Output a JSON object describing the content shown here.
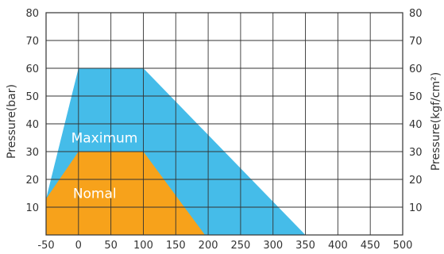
{
  "chart_data": {
    "type": "area",
    "xlabel": "",
    "ylabel_left": "Pressure(bar)",
    "ylabel_right": "Pressure(kgf/cm²)",
    "xlim": [
      -50,
      500
    ],
    "ylim": [
      0,
      80
    ],
    "x_ticks": [
      "-50",
      "0",
      "50",
      "100",
      "150",
      "200",
      "250",
      "300",
      "350",
      "400",
      "450",
      "500"
    ],
    "y_ticks_left": [
      "80",
      "70",
      "60",
      "50",
      "40",
      "30",
      "20",
      "10"
    ],
    "y_ticks_right": [
      "80",
      "70",
      "60",
      "50",
      "40",
      "30",
      "20",
      "10"
    ],
    "grid": true,
    "series": [
      {
        "name": "Maximum",
        "color": "#45bce9",
        "points": [
          [
            -50,
            0
          ],
          [
            -50,
            13
          ],
          [
            0,
            60
          ],
          [
            100,
            60
          ],
          [
            350,
            0
          ]
        ]
      },
      {
        "name": "Nomal",
        "color": "#f7a21b",
        "points": [
          [
            -50,
            0
          ],
          [
            -50,
            13
          ],
          [
            0,
            30
          ],
          [
            100,
            30
          ],
          [
            195,
            0
          ]
        ]
      }
    ],
    "annotations": [
      {
        "text": "Maximum",
        "x": 40,
        "y": 35
      },
      {
        "text": "Nomal",
        "x": 25,
        "y": 15
      }
    ]
  }
}
